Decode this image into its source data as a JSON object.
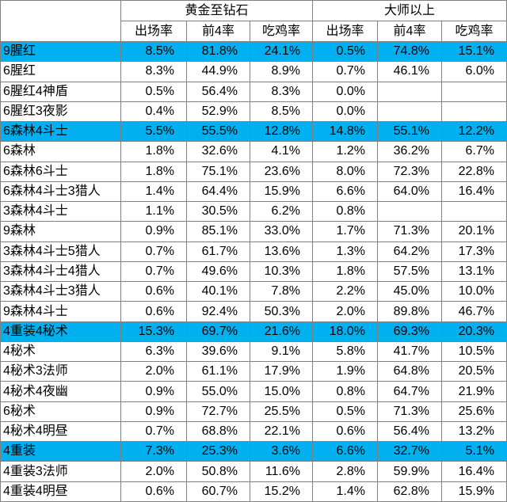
{
  "colors": {
    "highlight_row": "#00b0f0",
    "gridline": "#808080",
    "text": "#000000",
    "background": "#ffffff"
  },
  "chart_data": {
    "type": "table",
    "column_groups": [
      {
        "label": "黄金至钻石",
        "columns": [
          "出场率",
          "前4率",
          "吃鸡率"
        ]
      },
      {
        "label": "大师以上",
        "columns": [
          "出场率",
          "前4率",
          "吃鸡率"
        ]
      }
    ],
    "rows": [
      {
        "label": "9腥红",
        "highlight": true,
        "values": [
          "8.5%",
          "81.8%",
          "24.1%",
          "0.5%",
          "74.8%",
          "15.1%"
        ]
      },
      {
        "label": "6腥红",
        "highlight": false,
        "values": [
          "8.3%",
          "44.9%",
          "8.9%",
          "0.7%",
          "46.1%",
          "6.0%"
        ]
      },
      {
        "label": "6腥红4神盾",
        "highlight": false,
        "values": [
          "0.5%",
          "56.4%",
          "8.3%",
          "0.0%",
          "",
          ""
        ]
      },
      {
        "label": "6腥红3夜影",
        "highlight": false,
        "values": [
          "0.4%",
          "52.9%",
          "8.5%",
          "0.0%",
          "",
          ""
        ]
      },
      {
        "label": "6森林4斗士",
        "highlight": true,
        "values": [
          "5.5%",
          "55.5%",
          "12.8%",
          "14.8%",
          "55.1%",
          "12.2%"
        ]
      },
      {
        "label": "6森林",
        "highlight": false,
        "values": [
          "1.8%",
          "32.6%",
          "4.1%",
          "1.2%",
          "36.2%",
          "6.7%"
        ]
      },
      {
        "label": "6森林6斗士",
        "highlight": false,
        "values": [
          "1.8%",
          "75.1%",
          "23.6%",
          "8.0%",
          "72.3%",
          "22.8%"
        ]
      },
      {
        "label": "6森林4斗士3猎人",
        "highlight": false,
        "values": [
          "1.4%",
          "64.4%",
          "15.9%",
          "6.6%",
          "64.0%",
          "16.4%"
        ]
      },
      {
        "label": "3森林4斗士",
        "highlight": false,
        "values": [
          "1.1%",
          "30.5%",
          "6.2%",
          "0.8%",
          "",
          ""
        ]
      },
      {
        "label": "9森林",
        "highlight": false,
        "values": [
          "0.9%",
          "85.1%",
          "33.0%",
          "1.7%",
          "71.3%",
          "20.1%"
        ]
      },
      {
        "label": "3森林4斗士5猎人",
        "highlight": false,
        "values": [
          "0.7%",
          "61.7%",
          "13.6%",
          "1.3%",
          "64.2%",
          "17.3%"
        ]
      },
      {
        "label": "3森林4斗士4猎人",
        "highlight": false,
        "values": [
          "0.7%",
          "49.6%",
          "10.3%",
          "1.8%",
          "57.5%",
          "13.1%"
        ]
      },
      {
        "label": "3森林4斗士3猎人",
        "highlight": false,
        "values": [
          "0.6%",
          "40.1%",
          "7.8%",
          "2.2%",
          "45.0%",
          "10.0%"
        ]
      },
      {
        "label": "9森林4斗士",
        "highlight": false,
        "values": [
          "0.6%",
          "92.4%",
          "50.3%",
          "2.0%",
          "89.8%",
          "46.7%"
        ]
      },
      {
        "label": "4重装4秘术",
        "highlight": true,
        "values": [
          "15.3%",
          "69.7%",
          "21.6%",
          "18.0%",
          "69.3%",
          "20.3%"
        ]
      },
      {
        "label": "4秘术",
        "highlight": false,
        "values": [
          "6.3%",
          "39.6%",
          "9.1%",
          "5.8%",
          "41.7%",
          "10.5%"
        ]
      },
      {
        "label": "4秘术3法师",
        "highlight": false,
        "values": [
          "2.0%",
          "61.1%",
          "17.9%",
          "1.9%",
          "64.8%",
          "20.5%"
        ]
      },
      {
        "label": "4秘术4夜幽",
        "highlight": false,
        "values": [
          "0.9%",
          "55.0%",
          "15.0%",
          "0.8%",
          "64.7%",
          "21.9%"
        ]
      },
      {
        "label": "6秘术",
        "highlight": false,
        "values": [
          "0.9%",
          "72.7%",
          "25.5%",
          "0.5%",
          "71.3%",
          "25.6%"
        ]
      },
      {
        "label": "4秘术4明昼",
        "highlight": false,
        "values": [
          "0.7%",
          "68.8%",
          "22.1%",
          "0.6%",
          "56.4%",
          "13.2%"
        ]
      },
      {
        "label": "4重装",
        "highlight": true,
        "values": [
          "7.3%",
          "25.3%",
          "3.6%",
          "6.6%",
          "32.7%",
          "5.1%"
        ]
      },
      {
        "label": "4重装3法师",
        "highlight": false,
        "values": [
          "2.0%",
          "50.8%",
          "11.6%",
          "2.8%",
          "59.9%",
          "16.4%"
        ]
      },
      {
        "label": "4重装4明昼",
        "highlight": false,
        "values": [
          "0.6%",
          "60.7%",
          "15.2%",
          "1.4%",
          "62.8%",
          "15.9%"
        ]
      }
    ]
  }
}
